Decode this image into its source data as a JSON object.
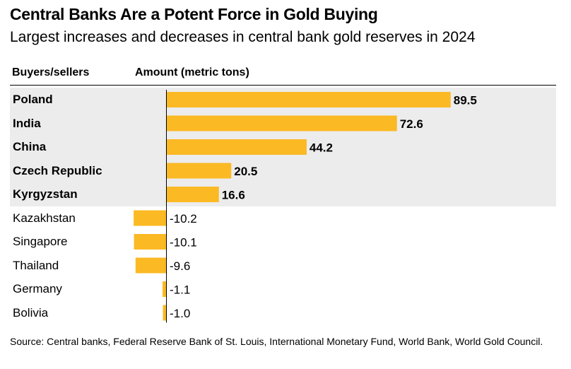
{
  "title": "Central Banks Are a Potent Force in Gold Buying",
  "subtitle": "Largest increases and decreases in central bank gold reserves in 2024",
  "column_headers": {
    "buyers_sellers": "Buyers/sellers",
    "amount": "Amount (metric tons)"
  },
  "source": "Source: Central banks, Federal Reserve Bank of St. Louis, International Monetary Fund, World Bank, World Gold Council.",
  "colors": {
    "bar": "#fbb924",
    "highlight_background": "#ececec",
    "axis": "#000000"
  },
  "chart_data": {
    "type": "bar",
    "orientation": "horizontal",
    "categories": [
      "Poland",
      "India",
      "China",
      "Czech Republic",
      "Kyrgyzstan",
      "Kazakhstan",
      "Singapore",
      "Thailand",
      "Germany",
      "Bolivia"
    ],
    "values": [
      89.5,
      72.6,
      44.2,
      20.5,
      16.6,
      -10.2,
      -10.1,
      -9.6,
      -1.1,
      -1.0
    ],
    "value_labels": [
      "89.5",
      "72.6",
      "44.2",
      "20.5",
      "16.6",
      "-10.2",
      "-10.1",
      "-9.6",
      "-1.1",
      "-1.0"
    ],
    "highlighted_categories": [
      "Poland",
      "India",
      "China",
      "Czech Republic",
      "Kyrgyzstan"
    ],
    "xlabel": "Amount (metric tons)",
    "ylabel": "Buyers/sellers",
    "xlim": [
      -10.2,
      89.5
    ],
    "grid": false,
    "legend": "none"
  }
}
